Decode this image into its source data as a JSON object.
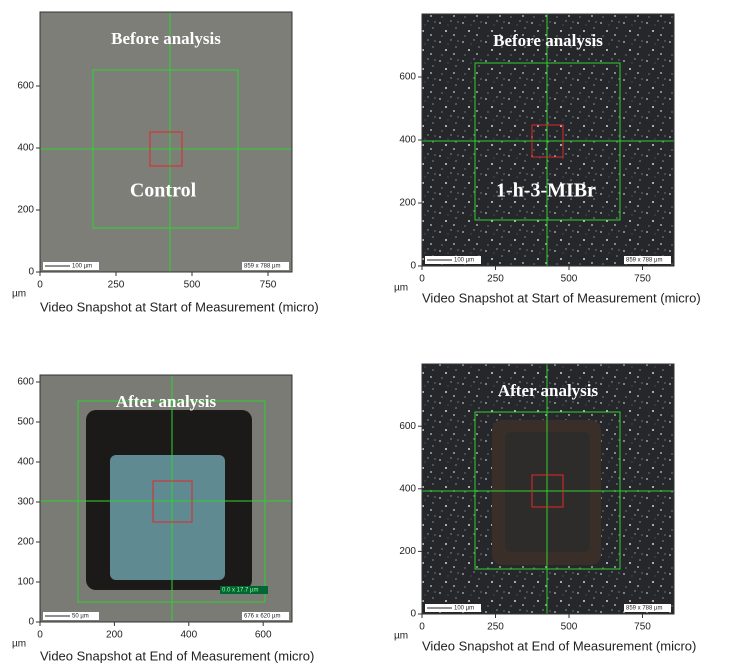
{
  "panels": [
    {
      "title": "Before analysis",
      "label": "Control",
      "unit": "µm",
      "caption": "Video Snapshot at Start of Measurement (micro)",
      "xticks": [
        0,
        250,
        500,
        750
      ],
      "yticks": [
        0,
        200,
        400,
        600
      ],
      "scale_bar": "100 µm",
      "size": "859 x 788 µm"
    },
    {
      "title": "Before analysis",
      "label": "1-h-3-MIBr",
      "unit": "µm",
      "caption": "Video Snapshot at Start of Measurement (micro)",
      "xticks": [
        0,
        250,
        500,
        750
      ],
      "yticks": [
        0,
        200,
        400,
        600
      ],
      "scale_bar": "100 µm",
      "size": "859 x 788 µm"
    },
    {
      "title": "After analysis",
      "unit": "µm",
      "caption": "Video Snapshot at End of Measurement (micro)",
      "xticks": [
        0,
        200,
        400,
        600
      ],
      "yticks": [
        0,
        100,
        200,
        300,
        400,
        500,
        600
      ],
      "scale_bar": "50 µm",
      "size": "676 x 620 µm",
      "measure": "0.0 x 17.7 µm"
    },
    {
      "title": "After analysis",
      "unit": "µm",
      "caption": "Video Snapshot at End of Measurement (micro)",
      "xticks": [
        0,
        250,
        500,
        750
      ],
      "yticks": [
        0,
        200,
        400,
        600
      ],
      "scale_bar": "100 µm",
      "size": "859 x 788 µm"
    }
  ]
}
